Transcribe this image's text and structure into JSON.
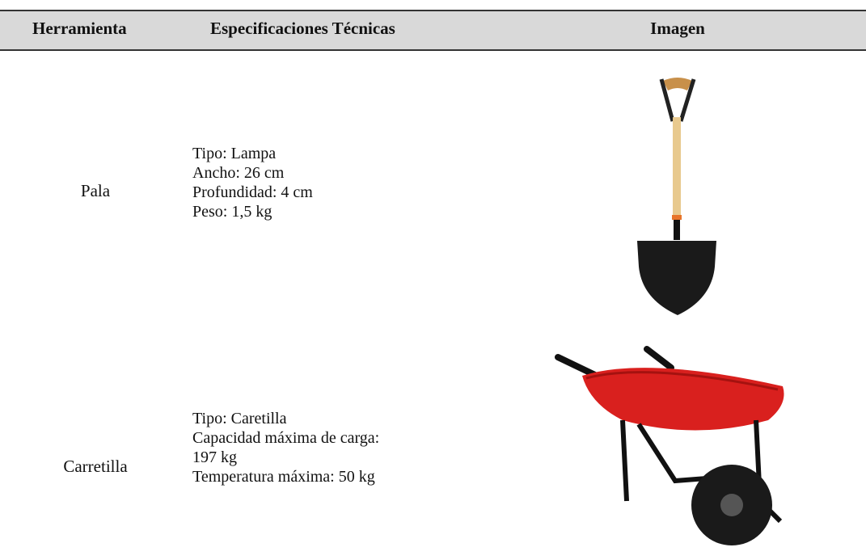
{
  "table": {
    "headers": [
      "Herramienta",
      "Especificaciones Técnicas",
      "Imagen"
    ],
    "rows": [
      {
        "tool": "Pala",
        "specs": [
          "Tipo: Lampa",
          "Ancho: 26 cm",
          "Profundidad: 4 cm",
          "Peso: 1,5 kg"
        ]
      },
      {
        "tool": "Carretilla",
        "specs": [
          "Tipo: Caretilla",
          "Capacidad máxima de carga:",
          "197 kg",
          "Temperatura máxima: 50 kg"
        ]
      }
    ]
  }
}
